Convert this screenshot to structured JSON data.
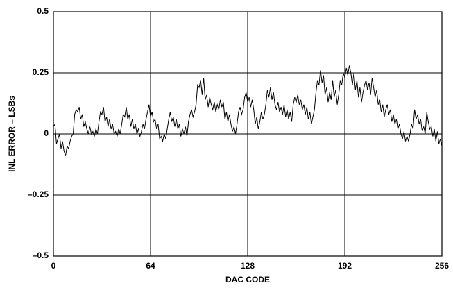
{
  "chart_data": {
    "type": "line",
    "xlabel": "DAC CODE",
    "ylabel": "INL ERROR – LSBs",
    "x": [
      0,
      1,
      2,
      3,
      4,
      5,
      6,
      7,
      8,
      9,
      10,
      11,
      12,
      13,
      14,
      15,
      16,
      17,
      18,
      19,
      20,
      21,
      22,
      23,
      24,
      25,
      26,
      27,
      28,
      29,
      30,
      31,
      32,
      33,
      34,
      35,
      36,
      37,
      38,
      39,
      40,
      41,
      42,
      43,
      44,
      45,
      46,
      47,
      48,
      49,
      50,
      51,
      52,
      53,
      54,
      55,
      56,
      57,
      58,
      59,
      60,
      61,
      62,
      63,
      64,
      65,
      66,
      67,
      68,
      69,
      70,
      71,
      72,
      73,
      74,
      75,
      76,
      77,
      78,
      79,
      80,
      81,
      82,
      83,
      84,
      85,
      86,
      87,
      88,
      89,
      90,
      91,
      92,
      93,
      94,
      95,
      96,
      97,
      98,
      99,
      100,
      101,
      102,
      103,
      104,
      105,
      106,
      107,
      108,
      109,
      110,
      111,
      112,
      113,
      114,
      115,
      116,
      117,
      118,
      119,
      120,
      121,
      122,
      123,
      124,
      125,
      126,
      127,
      128,
      129,
      130,
      131,
      132,
      133,
      134,
      135,
      136,
      137,
      138,
      139,
      140,
      141,
      142,
      143,
      144,
      145,
      146,
      147,
      148,
      149,
      150,
      151,
      152,
      153,
      154,
      155,
      156,
      157,
      158,
      159,
      160,
      161,
      162,
      163,
      164,
      165,
      166,
      167,
      168,
      169,
      170,
      171,
      172,
      173,
      174,
      175,
      176,
      177,
      178,
      179,
      180,
      181,
      182,
      183,
      184,
      185,
      186,
      187,
      188,
      189,
      190,
      191,
      192,
      193,
      194,
      195,
      196,
      197,
      198,
      199,
      200,
      201,
      202,
      203,
      204,
      205,
      206,
      207,
      208,
      209,
      210,
      211,
      212,
      213,
      214,
      215,
      216,
      217,
      218,
      219,
      220,
      221,
      222,
      223,
      224,
      225,
      226,
      227,
      228,
      229,
      230,
      231,
      232,
      233,
      234,
      235,
      236,
      237,
      238,
      239,
      240,
      241,
      242,
      243,
      244,
      245,
      246,
      247,
      248,
      249,
      250,
      251,
      252,
      253,
      254,
      255,
      256
    ],
    "values": [
      0.03,
      0.04,
      -0.04,
      -0.02,
      0.0,
      -0.06,
      -0.03,
      -0.07,
      -0.09,
      -0.05,
      -0.06,
      -0.03,
      -0.01,
      0.0,
      0.08,
      0.1,
      0.09,
      0.11,
      0.06,
      0.08,
      0.03,
      0.05,
      0.02,
      0.0,
      0.03,
      0.0,
      0.01,
      -0.01,
      0.02,
      0.0,
      0.05,
      0.09,
      0.08,
      0.11,
      0.05,
      0.07,
      0.03,
      0.06,
      0.02,
      0.04,
      0.0,
      0.01,
      -0.01,
      0.02,
      0.0,
      0.04,
      0.08,
      0.07,
      0.11,
      0.06,
      0.08,
      0.03,
      0.06,
      0.02,
      0.04,
      0.0,
      0.02,
      -0.01,
      0.01,
      0.04,
      0.02,
      0.06,
      0.09,
      0.12,
      0.07,
      0.09,
      0.05,
      0.06,
      0.02,
      0.04,
      -0.02,
      -0.01,
      -0.03,
      0.0,
      -0.02,
      0.02,
      0.06,
      0.09,
      0.05,
      0.07,
      0.03,
      0.06,
      0.02,
      0.04,
      -0.01,
      0.02,
      0.0,
      0.03,
      -0.01,
      0.05,
      0.08,
      0.1,
      0.07,
      0.09,
      0.12,
      0.2,
      0.19,
      0.22,
      0.16,
      0.23,
      0.14,
      0.16,
      0.11,
      0.15,
      0.12,
      0.1,
      0.13,
      0.09,
      0.12,
      0.1,
      0.14,
      0.11,
      0.13,
      0.06,
      0.09,
      0.05,
      0.08,
      0.04,
      0.01,
      0.03,
      0.0,
      0.04,
      0.09,
      0.11,
      0.08,
      0.1,
      0.15,
      0.17,
      0.13,
      0.15,
      0.11,
      0.14,
      0.1,
      0.04,
      0.07,
      0.02,
      0.05,
      0.09,
      0.06,
      0.08,
      0.12,
      0.18,
      0.15,
      0.19,
      0.14,
      0.17,
      0.12,
      0.1,
      0.13,
      0.09,
      0.11,
      0.08,
      0.12,
      0.07,
      0.1,
      0.06,
      0.09,
      0.05,
      0.12,
      0.15,
      0.13,
      0.16,
      0.12,
      0.14,
      0.1,
      0.12,
      0.08,
      0.11,
      0.06,
      0.09,
      0.04,
      0.07,
      0.1,
      0.17,
      0.22,
      0.2,
      0.26,
      0.21,
      0.24,
      0.16,
      0.19,
      0.13,
      0.17,
      0.14,
      0.22,
      0.15,
      0.18,
      0.12,
      0.16,
      0.22,
      0.2,
      0.25,
      0.23,
      0.27,
      0.24,
      0.28,
      0.25,
      0.2,
      0.25,
      0.18,
      0.22,
      0.15,
      0.19,
      0.13,
      0.17,
      0.2,
      0.22,
      0.18,
      0.21,
      0.16,
      0.23,
      0.19,
      0.15,
      0.18,
      0.12,
      0.14,
      0.09,
      0.12,
      0.07,
      0.1,
      0.12,
      0.08,
      0.1,
      0.05,
      0.08,
      0.04,
      0.06,
      0.02,
      0.04,
      0.0,
      -0.02,
      0.01,
      -0.03,
      -0.01,
      -0.03,
      0.0,
      0.04,
      0.02,
      0.1,
      0.06,
      0.08,
      0.04,
      0.06,
      0.01,
      0.03,
      0.0,
      0.09,
      0.05,
      0.02,
      0.03,
      -0.01,
      0.02,
      -0.03,
      0.01,
      -0.04,
      -0.02,
      -0.05
    ],
    "color": "#000000",
    "xlim": [
      0,
      256
    ],
    "xticks": [
      0,
      64,
      128,
      192,
      256
    ],
    "ylim": [
      -0.5,
      0.5
    ],
    "yticks": [
      {
        "value": -0.5,
        "label": "–0.5"
      },
      {
        "value": -0.25,
        "label": "–0.25"
      },
      0,
      0.25,
      0.5
    ],
    "grid": true
  }
}
